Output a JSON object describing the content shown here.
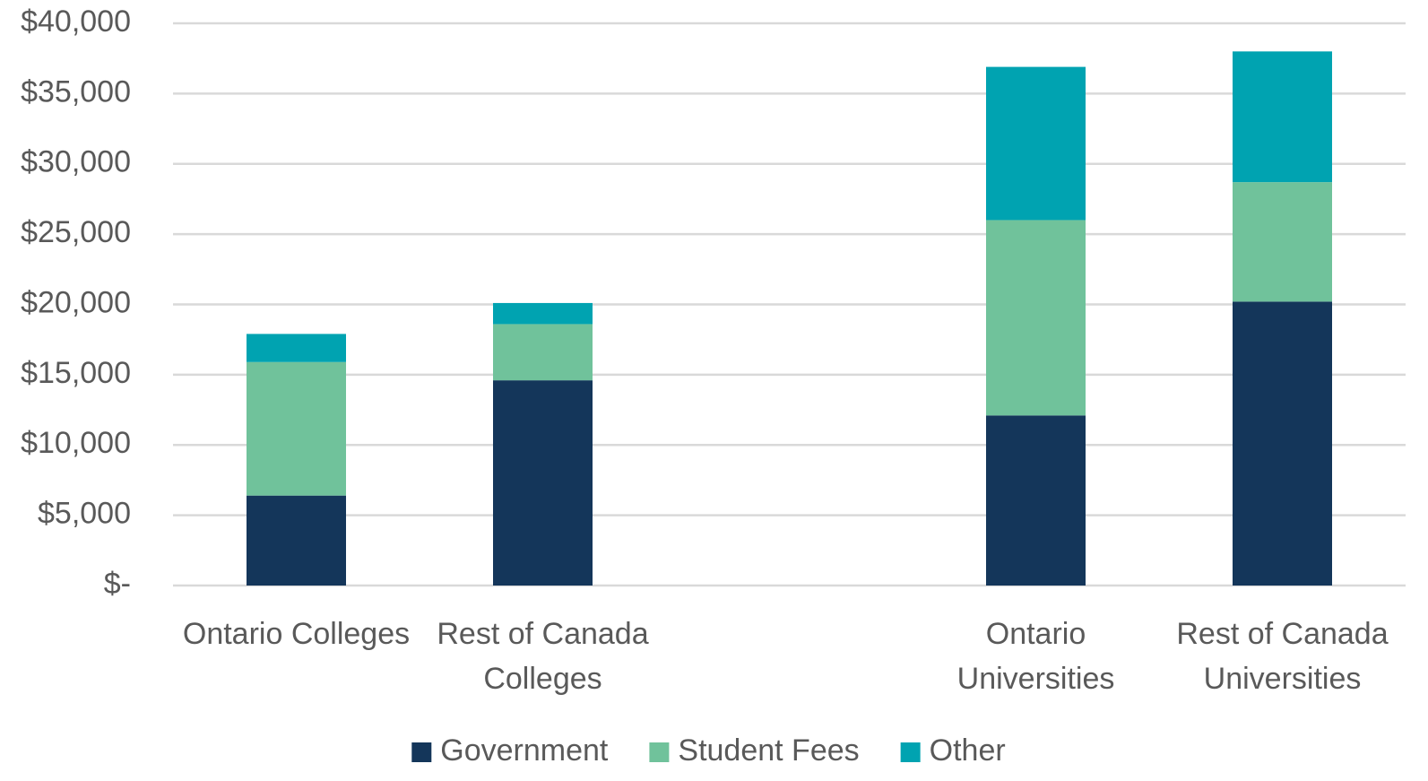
{
  "chart_data": {
    "type": "stacked_bar",
    "categories": [
      "Ontario Colleges",
      "Rest of Canada Colleges",
      null,
      "Ontario Universities",
      "Rest of Canada Universities"
    ],
    "series": [
      {
        "name": "Government",
        "color": "#14365a",
        "values": [
          6400,
          14600,
          null,
          12100,
          20200
        ]
      },
      {
        "name": "Student Fees",
        "color": "#70c29b",
        "values": [
          9500,
          4000,
          null,
          13900,
          8500
        ]
      },
      {
        "name": "Other",
        "color": "#00a3b1",
        "values": [
          2000,
          1500,
          null,
          10900,
          9300
        ]
      }
    ],
    "ylim": [
      0,
      40000
    ],
    "yticks": [
      {
        "value": 0,
        "label": "$-"
      },
      {
        "value": 5000,
        "label": "$5,000"
      },
      {
        "value": 10000,
        "label": "$10,000"
      },
      {
        "value": 15000,
        "label": "$15,000"
      },
      {
        "value": 20000,
        "label": "$20,000"
      },
      {
        "value": 25000,
        "label": "$25,000"
      },
      {
        "value": 30000,
        "label": "$30,000"
      },
      {
        "value": 35000,
        "label": "$35,000"
      },
      {
        "value": 40000,
        "label": "$40,000"
      }
    ],
    "grid": true,
    "legend": "bottom"
  }
}
